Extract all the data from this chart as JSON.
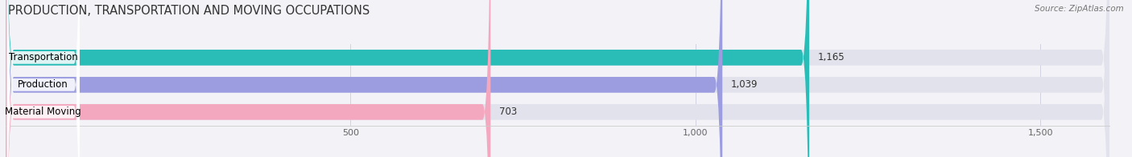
{
  "title": "PRODUCTION, TRANSPORTATION AND MOVING OCCUPATIONS",
  "source": "Source: ZipAtlas.com",
  "categories": [
    "Transportation",
    "Production",
    "Material Moving"
  ],
  "values": [
    1165,
    1039,
    703
  ],
  "bar_colors": [
    "#2abdb8",
    "#9b9de0",
    "#f4a8bf"
  ],
  "value_labels": [
    "1,165",
    "1,039",
    "703"
  ],
  "xlim": [
    0,
    1600
  ],
  "xticks": [
    500,
    1000,
    1500
  ],
  "xtick_labels": [
    "500",
    "1,000",
    "1,500"
  ],
  "background_color": "#f2f2f7",
  "bar_bg_color": "#e2e2ec",
  "title_fontsize": 10.5,
  "label_fontsize": 8.5,
  "value_fontsize": 8.5,
  "bar_height": 0.58
}
